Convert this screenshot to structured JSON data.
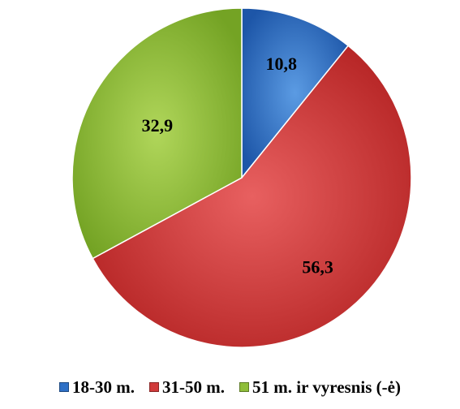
{
  "chart_data": {
    "type": "pie",
    "title": "",
    "categories": [
      "18-30 m.",
      "31-50 m.",
      "51 m. ir vyresnis (-ė)"
    ],
    "values": [
      10.8,
      56.3,
      32.9
    ],
    "data_labels": [
      "10,8",
      "56,3",
      "32,9"
    ],
    "colors": [
      "#2e70c6",
      "#d13b3b",
      "#8fbe3a"
    ],
    "legend_position": "bottom",
    "start_angle": "12 o'clock",
    "direction": "clockwise"
  }
}
